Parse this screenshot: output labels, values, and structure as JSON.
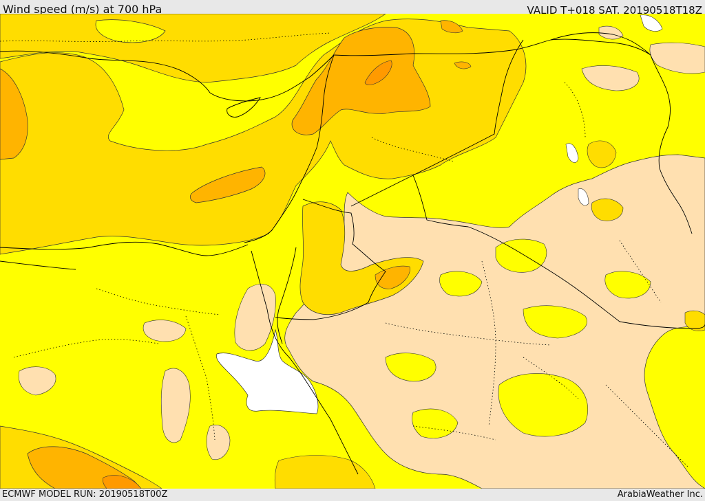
{
  "header": {
    "title": "Wind speed (m/s) at 700 hPa",
    "valid": "VALID T+018 SAT. 20190518T18Z"
  },
  "footer": {
    "model_run": "ECMWF MODEL RUN: 20190518T00Z",
    "credit": "ArabiaWeather Inc."
  },
  "map": {
    "field": "wind speed",
    "level": "700 hPa",
    "colors": {
      "lowest": "#ffffff",
      "low": "#ffe0b0",
      "mid": "#ffff00",
      "high": "#ffdd00",
      "higher": "#ffb400",
      "highest": "#ff9a00",
      "contour": "#333333",
      "border": "#000000"
    }
  }
}
